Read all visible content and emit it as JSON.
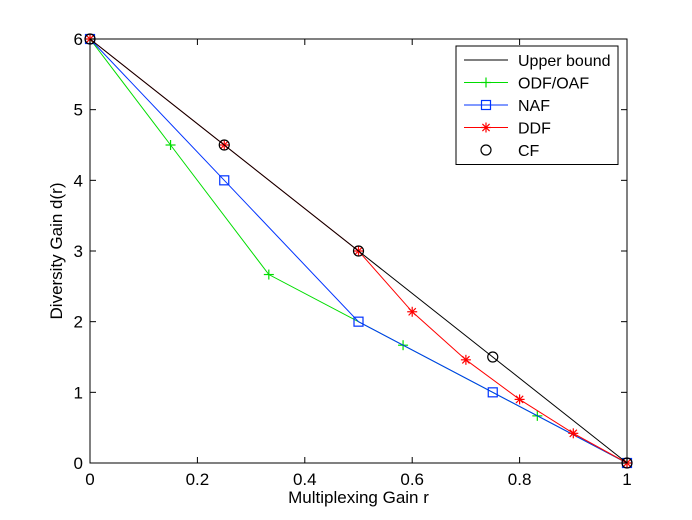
{
  "chart_data": {
    "type": "line",
    "title": "",
    "xlabel": "Multiplexing Gain r",
    "ylabel": "Diversity Gain d(r)",
    "xlim": [
      0,
      1
    ],
    "ylim": [
      0,
      6
    ],
    "xticks": [
      0,
      0.2,
      0.4,
      0.6,
      0.8,
      1
    ],
    "xtick_labels": [
      "0",
      "0.2",
      "0.4",
      "0.6",
      "0.8",
      "1"
    ],
    "yticks": [
      0,
      1,
      2,
      3,
      4,
      5,
      6
    ],
    "ytick_labels": [
      "0",
      "1",
      "2",
      "3",
      "4",
      "5",
      "6"
    ],
    "grid": false,
    "legend_position": "top-right",
    "series": [
      {
        "name": "Upper bound",
        "color": "#000000",
        "marker": "none",
        "x": [
          0,
          1
        ],
        "y": [
          6,
          0
        ],
        "marker_x": [],
        "marker_y": []
      },
      {
        "name": "ODF/OAF",
        "color": "#00dd00",
        "marker": "plus",
        "x": [
          0,
          0.15,
          0.333,
          0.583,
          0.833,
          1
        ],
        "y": [
          6,
          4.5,
          2.667,
          1.667,
          0.667,
          0
        ],
        "marker_x": [
          0,
          0.15,
          0.333,
          0.583,
          0.833,
          1
        ],
        "marker_y": [
          6,
          4.5,
          2.667,
          1.667,
          0.667,
          0
        ]
      },
      {
        "name": "NAF",
        "color": "#0033ff",
        "marker": "square",
        "x": [
          0,
          0.25,
          0.5,
          0.75,
          1
        ],
        "y": [
          6,
          4,
          2,
          1,
          0
        ],
        "marker_x": [
          0,
          0.25,
          0.5,
          0.75,
          1
        ],
        "marker_y": [
          6,
          4,
          2,
          1,
          0
        ]
      },
      {
        "name": "DDF",
        "color": "#ff0000",
        "marker": "asterisk",
        "x": [
          0,
          0.25,
          0.5,
          0.6,
          0.7,
          0.8,
          0.9,
          1
        ],
        "y": [
          6,
          4.5,
          3,
          2.14,
          1.46,
          0.9,
          0.42,
          0
        ],
        "marker_x": [
          0,
          0.25,
          0.5,
          0.6,
          0.7,
          0.8,
          0.9,
          1
        ],
        "marker_y": [
          6,
          4.5,
          3,
          2.14,
          1.46,
          0.9,
          0.42,
          0
        ]
      },
      {
        "name": "CF",
        "color": "#000000",
        "marker": "circle",
        "x": [],
        "y": [],
        "marker_x": [
          0,
          0.25,
          0.5,
          0.75,
          1
        ],
        "marker_y": [
          6,
          4.5,
          3,
          1.5,
          0
        ]
      }
    ]
  }
}
